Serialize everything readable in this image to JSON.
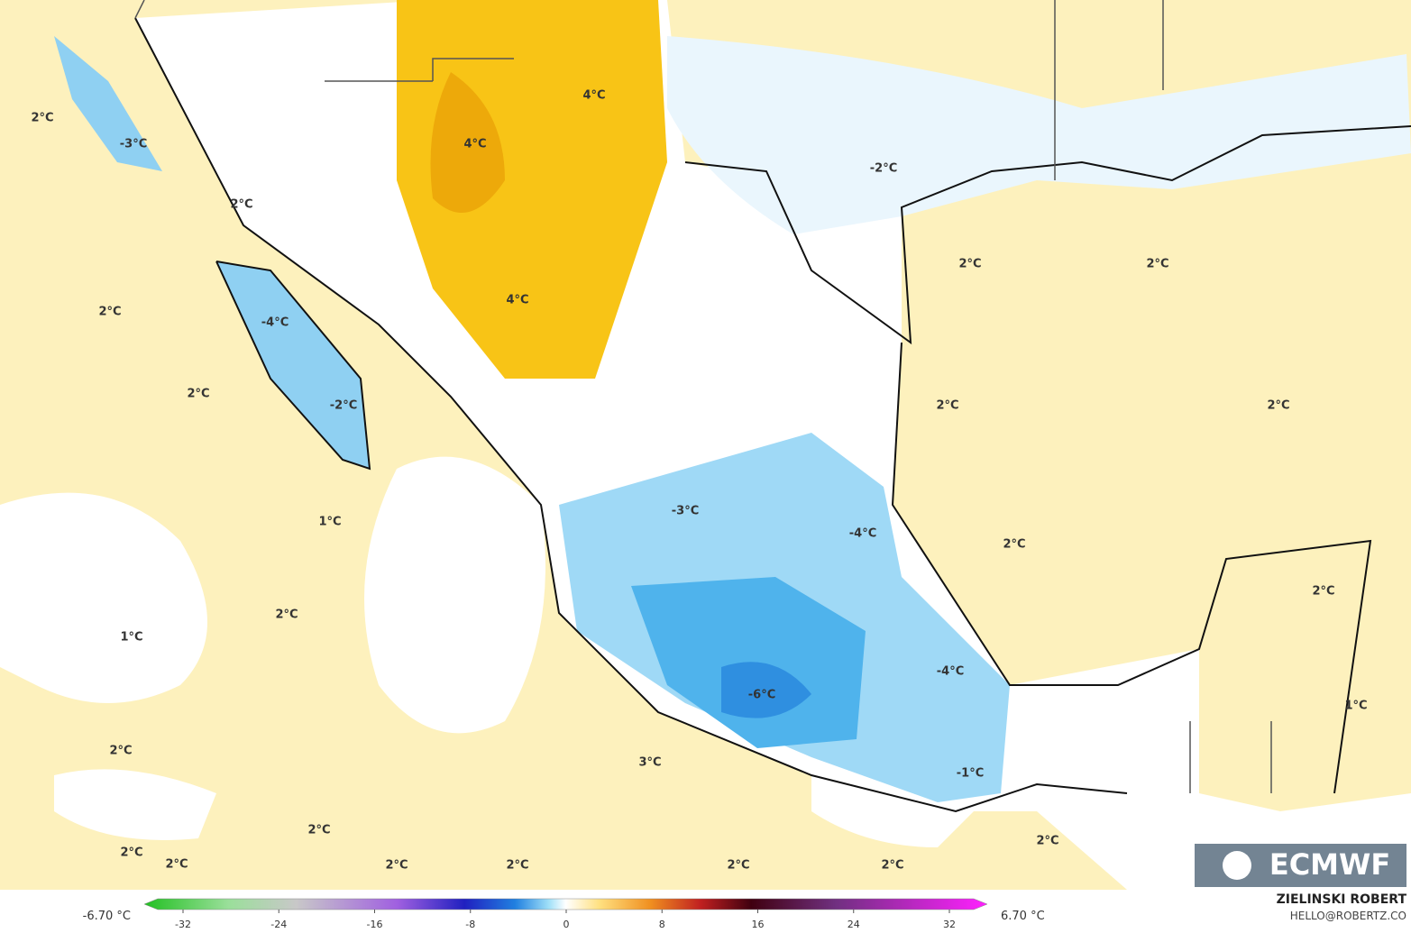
{
  "map": {
    "labels": [
      "2°C",
      "-3°C",
      "2°C",
      "2°C",
      "-4°C",
      "2°C",
      "-2°C",
      "1°C",
      "2°C",
      "1°C",
      "2°C",
      "2°C",
      "2°C",
      "2°C",
      "2°C",
      "2°C",
      "3°C",
      "2°C",
      "2°C",
      "2°C",
      "-1°C",
      "-4°C",
      "-6°C",
      "-4°C",
      "-3°C",
      "2°C",
      "2°C",
      "2°C",
      "2°C",
      "2°C",
      "-2°C",
      "4°C",
      "4°C",
      "4°C",
      "2°C",
      "1°C"
    ]
  },
  "colorbar": {
    "min_label": "-6.70 °C",
    "max_label": "6.70 °C",
    "ticks": [
      -32,
      -24,
      -16,
      -8,
      0,
      8,
      16,
      24,
      32
    ]
  },
  "credits": {
    "author": "ZIELINSKI ROBERT",
    "email": "HELLO@ROBERTZ.CO",
    "logo": "ECMWF"
  }
}
